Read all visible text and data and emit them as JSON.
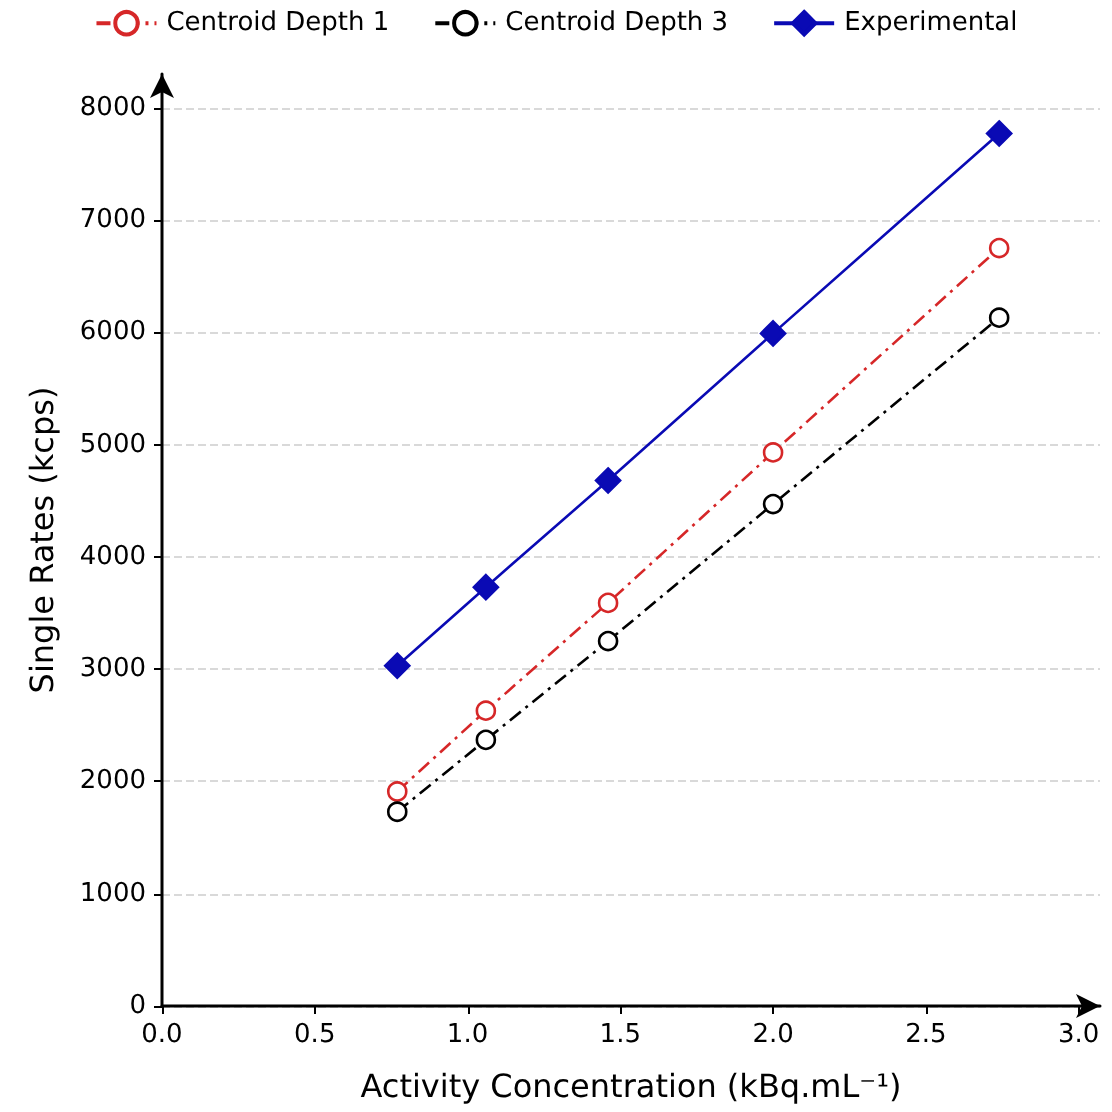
{
  "chart_data": {
    "type": "line",
    "xlabel": "Activity Concentration (kBq.mL⁻¹)",
    "ylabel": "Single Rates (kcps)",
    "x": [
      0.77,
      1.06,
      1.46,
      2.0,
      2.74
    ],
    "series": [
      {
        "name": "Centroid Depth 1",
        "color": "#d62728",
        "values": [
          1910,
          2630,
          3590,
          4930,
          6750
        ],
        "marker": "circle",
        "line_style": "dashed"
      },
      {
        "name": "Centroid Depth 3",
        "color": "#000000",
        "values": [
          1730,
          2370,
          3250,
          4470,
          6130
        ],
        "marker": "circle",
        "line_style": "dashed"
      },
      {
        "name": "Experimental",
        "color": "#0a0ab4",
        "values": [
          3030,
          3730,
          4680,
          5990,
          7770
        ],
        "marker": "diamond",
        "line_style": "solid"
      }
    ],
    "xlim": [
      0,
      3.07
    ],
    "xticks": [
      {
        "value": 0,
        "label": "0.0"
      },
      {
        "value": 0.5,
        "label": "0.5"
      },
      {
        "value": 1,
        "label": "1.0"
      },
      {
        "value": 1.5,
        "label": "1.5"
      },
      {
        "value": 2,
        "label": "2.0"
      },
      {
        "value": 2.5,
        "label": "2.5"
      },
      {
        "value": 3,
        "label": "3.0"
      }
    ],
    "ylim": [
      0,
      8300
    ],
    "yticks": [
      0,
      1000,
      2000,
      3000,
      4000,
      5000,
      6000,
      7000,
      8000
    ],
    "grid": "y",
    "legend": "top"
  }
}
